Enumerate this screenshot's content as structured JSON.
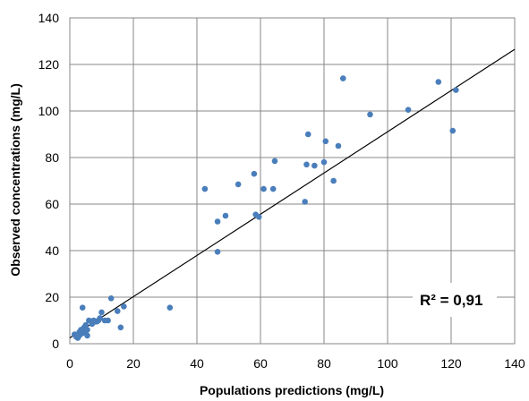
{
  "chart_data": {
    "type": "scatter",
    "xlabel": "Populations predictions (mg/L)",
    "ylabel": "Observed concentrations (mg/L)",
    "xlim": [
      0,
      140
    ],
    "ylim": [
      0,
      140
    ],
    "xticks": [
      0,
      20,
      40,
      60,
      80,
      100,
      120,
      140
    ],
    "yticks": [
      0,
      20,
      40,
      60,
      80,
      100,
      120,
      140
    ],
    "grid": true,
    "annotation": "R² = 0,91",
    "point_color": "#4a7ebb",
    "line_color": "#000000",
    "trendline": {
      "x": [
        0,
        140
      ],
      "y": [
        2.5,
        126.5
      ]
    },
    "points": [
      [
        1.5,
        4
      ],
      [
        2,
        3
      ],
      [
        2.5,
        2.5
      ],
      [
        3,
        5
      ],
      [
        3,
        3.5
      ],
      [
        3.5,
        6
      ],
      [
        4,
        4.5
      ],
      [
        4,
        15.5
      ],
      [
        4.5,
        7
      ],
      [
        5,
        5
      ],
      [
        5,
        8
      ],
      [
        5.5,
        3.5
      ],
      [
        5.5,
        6
      ],
      [
        6,
        10
      ],
      [
        7,
        8.5
      ],
      [
        7.5,
        10
      ],
      [
        8,
        9.5
      ],
      [
        8.5,
        9.5
      ],
      [
        9,
        10
      ],
      [
        9.5,
        11
      ],
      [
        10,
        13.5
      ],
      [
        11,
        10
      ],
      [
        12,
        10
      ],
      [
        13,
        19.5
      ],
      [
        15,
        14
      ],
      [
        16,
        7
      ],
      [
        17,
        16
      ],
      [
        31.5,
        15.5
      ],
      [
        42.5,
        66.5
      ],
      [
        46.5,
        52.5
      ],
      [
        46.5,
        39.5
      ],
      [
        49,
        55
      ],
      [
        53,
        68.5
      ],
      [
        58,
        73
      ],
      [
        58.5,
        55.5
      ],
      [
        59.5,
        54.5
      ],
      [
        61,
        66.5
      ],
      [
        64,
        66.5
      ],
      [
        64.5,
        78.5
      ],
      [
        74,
        61
      ],
      [
        74.5,
        77
      ],
      [
        75,
        90
      ],
      [
        77,
        76.5
      ],
      [
        80,
        78
      ],
      [
        80.5,
        87
      ],
      [
        83,
        70
      ],
      [
        84.5,
        85
      ],
      [
        86,
        114
      ],
      [
        94.5,
        98.5
      ],
      [
        106.5,
        100.5
      ],
      [
        116,
        112.5
      ],
      [
        120.5,
        91.5
      ],
      [
        121.5,
        109
      ]
    ]
  }
}
